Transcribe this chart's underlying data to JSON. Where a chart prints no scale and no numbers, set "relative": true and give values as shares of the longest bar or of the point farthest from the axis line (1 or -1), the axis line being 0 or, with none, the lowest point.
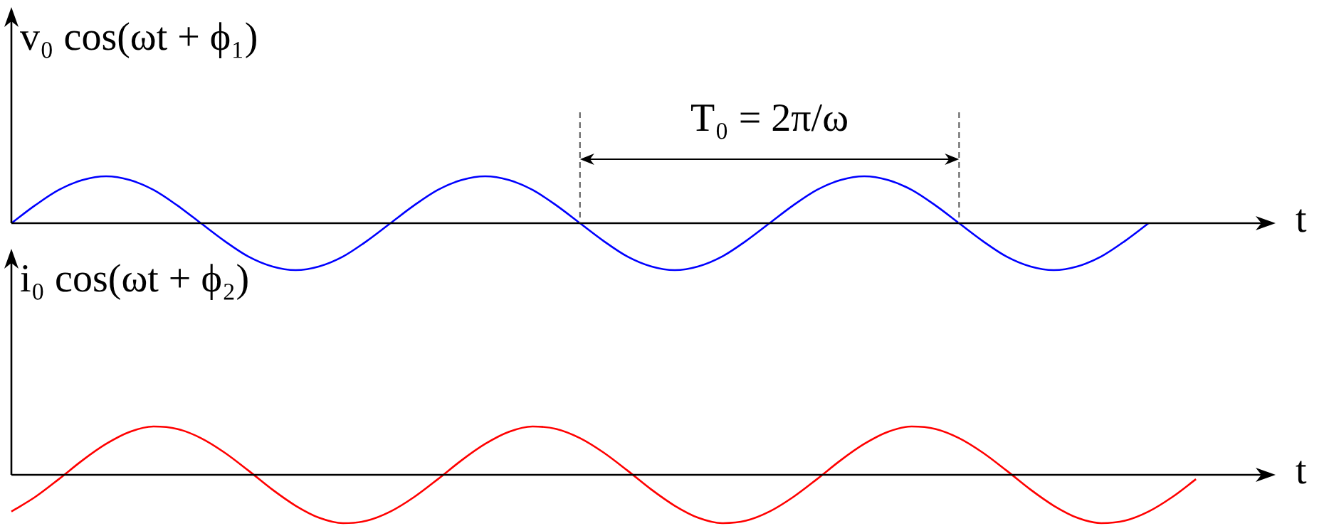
{
  "chart_data": [
    {
      "type": "line",
      "relative": true,
      "ylabel": "v₀ cos(ωt + ϕ₁)",
      "xlabel": "t",
      "marker": "none",
      "annotations": [
        "T₀ = 2π/ω"
      ],
      "categories": [
        null,
        null,
        null,
        null,
        null,
        null,
        null,
        null,
        null,
        null,
        null,
        null,
        null,
        null,
        null,
        null,
        null,
        null,
        null,
        null,
        null,
        null,
        null,
        null,
        null,
        null,
        null,
        null,
        null,
        null,
        null,
        null,
        null,
        null,
        null,
        null,
        null,
        null,
        null,
        null,
        null,
        null,
        null,
        null,
        null,
        null,
        null,
        null,
        null,
        null,
        null,
        null,
        null,
        null
      ],
      "series": [
        {
          "color": "#0000ff",
          "values": [
            0,
            0.38,
            0.71,
            0.92,
            1,
            0.92,
            0.71,
            0.38,
            0,
            -0.38,
            -0.71,
            -0.92,
            -1,
            -0.92,
            -0.71,
            -0.38,
            0,
            0.38,
            0.71,
            0.92,
            1,
            0.92,
            0.71,
            0.38,
            0,
            -0.38,
            -0.71,
            -0.92,
            -1,
            -0.92,
            -0.71,
            -0.38,
            0,
            0.38,
            0.71,
            0.92,
            1,
            0.92,
            0.71,
            0.38,
            0,
            -0.38,
            -0.71,
            -0.92,
            -1,
            -0.92,
            -0.71,
            -0.38,
            0,
            null,
            null,
            null,
            null,
            null
          ]
        }
      ]
    },
    {
      "type": "line",
      "relative": true,
      "ylabel": "i₀ cos(ωt + ϕ₂)",
      "xlabel": "t",
      "marker": "none",
      "categories": [
        null,
        null,
        null,
        null,
        null,
        null,
        null,
        null,
        null,
        null,
        null,
        null,
        null,
        null,
        null,
        null,
        null,
        null,
        null,
        null,
        null,
        null,
        null,
        null,
        null,
        null,
        null,
        null,
        null,
        null,
        null,
        null,
        null,
        null,
        null,
        null,
        null,
        null,
        null,
        null,
        null,
        null,
        null,
        null,
        null,
        null,
        null,
        null,
        null,
        null,
        null,
        null,
        null,
        null
      ],
      "series": [
        {
          "color": "#ff0000",
          "values": [
            -0.76,
            -0.46,
            -0.09,
            0.3,
            0.64,
            0.89,
            1,
            0.95,
            0.76,
            0.46,
            0.09,
            -0.3,
            -0.64,
            -0.89,
            -1,
            -0.95,
            -0.76,
            -0.46,
            -0.09,
            0.3,
            0.64,
            0.89,
            1,
            0.95,
            0.76,
            0.46,
            0.09,
            -0.3,
            -0.64,
            -0.89,
            -1,
            -0.95,
            -0.76,
            -0.46,
            -0.09,
            0.3,
            0.64,
            0.89,
            1,
            0.95,
            0.76,
            0.46,
            0.09,
            -0.3,
            -0.64,
            -0.89,
            -1,
            -0.95,
            -0.76,
            -0.46,
            -0.09,
            null,
            null,
            null
          ]
        }
      ]
    }
  ]
}
